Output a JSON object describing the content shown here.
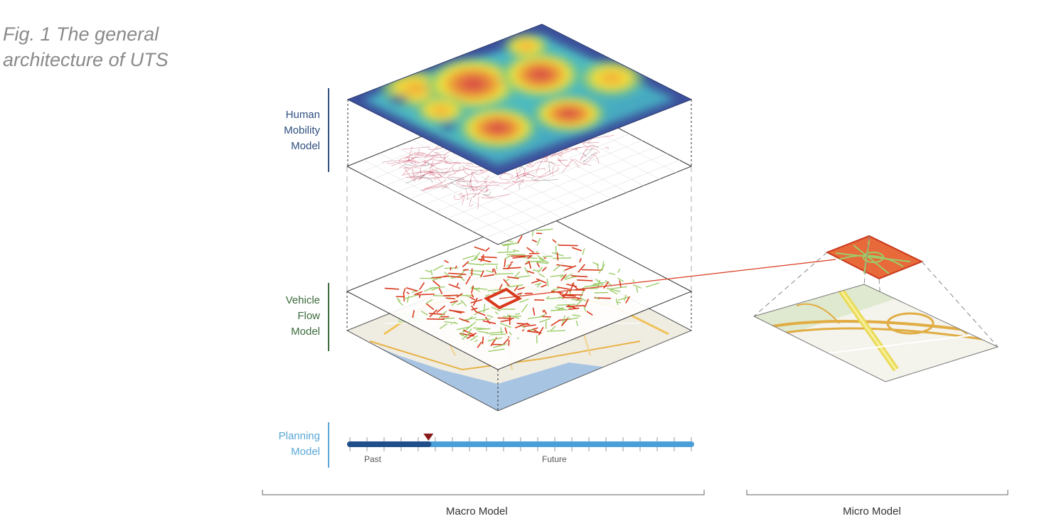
{
  "caption": {
    "line1": "Fig. 1 The general",
    "line2": "architecture of UTS"
  },
  "layers": {
    "human_mobility": [
      "Human",
      "Mobility",
      "Model"
    ],
    "vehicle_flow": [
      "Vehicle",
      "Flow",
      "Model"
    ],
    "planning": [
      "Planning",
      "Model"
    ]
  },
  "timeline": {
    "past_label": "Past",
    "future_label": "Future",
    "current_position": 0.23
  },
  "sections": {
    "macro": "Macro Model",
    "micro": "Micro Model"
  },
  "colors": {
    "human_label": "#2f4f7f",
    "vehicle_label": "#3c6b3c",
    "planning_label": "#5aa7d6",
    "timeline_past": "#1f4e89",
    "timeline_future": "#4a9fd8",
    "marker": "#8b1a1a",
    "flow_red": "#d8391d",
    "flow_green": "#9ccc6a"
  }
}
